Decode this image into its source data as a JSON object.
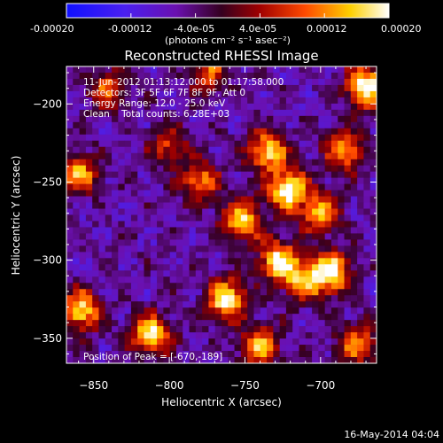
{
  "colorbar": {
    "tick_labels": [
      "-0.00020",
      "-0.00012",
      "-4.0e-05",
      "4.0e-05",
      "0.00012",
      "0.00020"
    ],
    "units": "(photons cm⁻² s⁻¹ asec⁻²)",
    "range": [
      -0.0002,
      0.0002
    ],
    "colors": [
      "#1010ff",
      "#7a10d0",
      "#6010a0",
      "#300010",
      "#b00000",
      "#ff5000",
      "#ffd000",
      "#ffffff"
    ]
  },
  "plot": {
    "title": "Reconstructed RHESSI Image",
    "time_range": "11-Jun-2012 01:13:12.000 to 01:17:58.000",
    "detectors": "Detectors: 3F 5F 6F 7F 8F 9F, Att 0",
    "energy_range": "Energy Range: 12.0 - 25.0 keV",
    "method_counts": "Clean    Total counts: 6.28E+03",
    "peak_label": "Position of Peak = [-670,-189]",
    "xlabel": "Heliocentric X (arcsec)",
    "ylabel": "Heliocentric Y (arcsec)"
  },
  "chart_data": {
    "type": "heatmap",
    "title": "Reconstructed RHESSI Image",
    "xlabel": "Heliocentric X (arcsec)",
    "ylabel": "Heliocentric Y (arcsec)",
    "xlim": [
      -868,
      -663
    ],
    "ylim": [
      -366,
      -176
    ],
    "x_ticks": [
      -850,
      -800,
      -750,
      -700
    ],
    "y_ticks": [
      -200,
      -250,
      -300,
      -350
    ],
    "x_tick_labels": [
      "−850",
      "−800",
      "−750",
      "−700"
    ],
    "y_tick_labels": [
      "−200",
      "−250",
      "−300",
      "−350"
    ],
    "colorbar_range": [
      -0.0002,
      0.0002
    ],
    "peak_position": [
      -670,
      -189
    ],
    "grid": false,
    "hotspots": [
      {
        "x": -860,
        "y": -245,
        "v": 0.00012
      },
      {
        "x": -858,
        "y": -332,
        "v": 0.00016
      },
      {
        "x": -840,
        "y": -190,
        "v": 8e-05
      },
      {
        "x": -812,
        "y": -348,
        "v": 0.00017
      },
      {
        "x": -800,
        "y": -227,
        "v": 6e-05
      },
      {
        "x": -780,
        "y": -250,
        "v": 0.0001
      },
      {
        "x": -775,
        "y": -180,
        "v": 7e-05
      },
      {
        "x": -762,
        "y": -325,
        "v": 0.00018
      },
      {
        "x": -752,
        "y": -275,
        "v": 0.00016
      },
      {
        "x": -740,
        "y": -355,
        "v": 0.00012
      },
      {
        "x": -735,
        "y": -230,
        "v": 0.00015
      },
      {
        "x": -728,
        "y": -300,
        "v": 0.00016
      },
      {
        "x": -722,
        "y": -255,
        "v": 0.0002
      },
      {
        "x": -712,
        "y": -313,
        "v": 0.00012
      },
      {
        "x": -700,
        "y": -270,
        "v": 0.00012
      },
      {
        "x": -693,
        "y": -308,
        "v": 0.00019
      },
      {
        "x": -684,
        "y": -230,
        "v": 0.00012
      },
      {
        "x": -676,
        "y": -354,
        "v": 0.0001
      },
      {
        "x": -670,
        "y": -189,
        "v": 0.0002
      }
    ]
  },
  "footer": {
    "timestamp": "16-May-2014 04:04"
  }
}
